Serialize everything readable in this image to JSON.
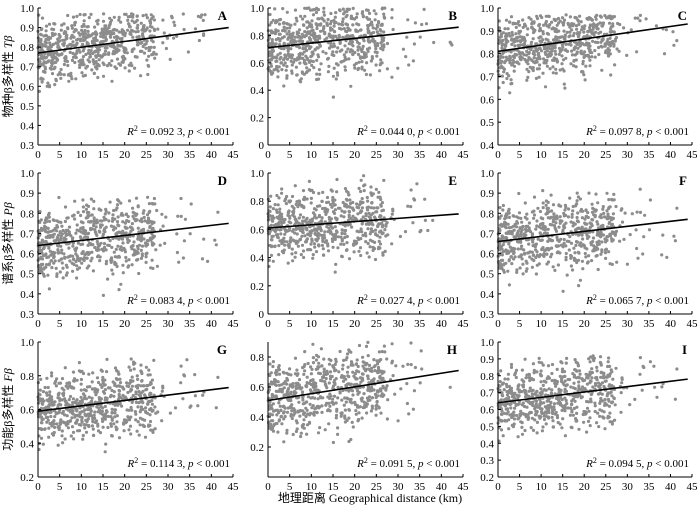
{
  "figure": {
    "xlabel": "地理距离 Geographical distance (km)",
    "row_ylabels": [
      "物种β多样性 Tβ",
      "谱系β多样性 Pβ",
      "功能β多样性 Fβ"
    ]
  },
  "chart_data": [
    {
      "type": "scatter",
      "panel": "A",
      "xlim": [
        0,
        45
      ],
      "ylim": [
        0.3,
        1.0
      ],
      "xticks": [
        0,
        5,
        10,
        15,
        20,
        25,
        30,
        35,
        40,
        45
      ],
      "yticks": [
        0.3,
        0.4,
        0.5,
        0.6,
        0.7,
        0.8,
        0.9,
        1.0
      ],
      "yticklabels": [
        "0.3",
        "0.4",
        "0.5",
        "0.6",
        "0.7",
        "0.8",
        "0.9",
        "1.0"
      ],
      "fit": {
        "x": [
          0,
          44
        ],
        "y": [
          0.77,
          0.9
        ]
      },
      "stat": {
        "r2": "0.092 3",
        "p": "< 0.001"
      },
      "cloud": {
        "center": 0.82,
        "spread": 0.08,
        "min": 0.45,
        "max": 0.97
      },
      "grid": false
    },
    {
      "type": "scatter",
      "panel": "B",
      "xlim": [
        0,
        45
      ],
      "ylim": [
        0,
        1.0
      ],
      "xticks": [
        0,
        5,
        10,
        15,
        20,
        25,
        30,
        35,
        40,
        45
      ],
      "yticks": [
        0,
        0.2,
        0.4,
        0.6,
        0.8,
        1.0
      ],
      "yticklabels": [
        "0",
        "0.2",
        "0.4",
        "0.6",
        "0.8",
        "1.0"
      ],
      "fit": {
        "x": [
          0,
          44
        ],
        "y": [
          0.71,
          0.86
        ]
      },
      "stat": {
        "r2": "0.044 0",
        "p": "< 0.001"
      },
      "cloud": {
        "center": 0.78,
        "spread": 0.13,
        "min": 0.3,
        "max": 1.0
      },
      "grid": false
    },
    {
      "type": "scatter",
      "panel": "C",
      "xlim": [
        0,
        45
      ],
      "ylim": [
        0.4,
        1.0
      ],
      "xticks": [
        0,
        5,
        10,
        15,
        20,
        25,
        30,
        35,
        40,
        45
      ],
      "yticks": [
        0.4,
        0.5,
        0.6,
        0.7,
        0.8,
        0.9,
        1.0
      ],
      "yticklabels": [
        "0.4",
        "0.5",
        "0.6",
        "0.7",
        "0.8",
        "0.9",
        "1.0"
      ],
      "fit": {
        "x": [
          0,
          44
        ],
        "y": [
          0.81,
          0.93
        ]
      },
      "stat": {
        "r2": "0.097 8",
        "p": "< 0.001"
      },
      "cloud": {
        "center": 0.86,
        "spread": 0.07,
        "min": 0.45,
        "max": 0.97
      },
      "grid": false
    },
    {
      "type": "scatter",
      "panel": "D",
      "xlim": [
        0,
        45
      ],
      "ylim": [
        0.3,
        1.0
      ],
      "xticks": [
        0,
        5,
        10,
        15,
        20,
        25,
        30,
        35,
        40,
        45
      ],
      "yticks": [
        0.3,
        0.4,
        0.5,
        0.6,
        0.7,
        0.8,
        0.9,
        1.0
      ],
      "yticklabels": [
        "0.3",
        "0.4",
        "0.5",
        "0.6",
        "0.7",
        "0.8",
        "0.9",
        "1.0"
      ],
      "fit": {
        "x": [
          0,
          44
        ],
        "y": [
          0.64,
          0.75
        ]
      },
      "stat": {
        "r2": "0.083 4",
        "p": "< 0.001"
      },
      "cloud": {
        "center": 0.68,
        "spread": 0.09,
        "min": 0.34,
        "max": 0.88
      },
      "grid": false
    },
    {
      "type": "scatter",
      "panel": "E",
      "xlim": [
        0,
        45
      ],
      "ylim": [
        0,
        1.0
      ],
      "xticks": [
        0,
        5,
        10,
        15,
        20,
        25,
        30,
        35,
        40,
        45
      ],
      "yticks": [
        0,
        0.2,
        0.4,
        0.6,
        0.8,
        1.0
      ],
      "yticklabels": [
        "0",
        "0.2",
        "0.4",
        "0.6",
        "0.8",
        "1.0"
      ],
      "fit": {
        "x": [
          0,
          44
        ],
        "y": [
          0.61,
          0.71
        ]
      },
      "stat": {
        "r2": "0.027 4",
        "p": "< 0.001"
      },
      "cloud": {
        "center": 0.65,
        "spread": 0.12,
        "min": 0.2,
        "max": 1.0
      },
      "grid": false
    },
    {
      "type": "scatter",
      "panel": "F",
      "xlim": [
        0,
        45
      ],
      "ylim": [
        0.3,
        1.0
      ],
      "xticks": [
        0,
        5,
        10,
        15,
        20,
        25,
        30,
        35,
        40,
        45
      ],
      "yticks": [
        0.3,
        0.4,
        0.5,
        0.6,
        0.7,
        0.8,
        0.9,
        1.0
      ],
      "yticklabels": [
        "0.3",
        "0.4",
        "0.5",
        "0.6",
        "0.7",
        "0.8",
        "0.9",
        "1.0"
      ],
      "fit": {
        "x": [
          0,
          44
        ],
        "y": [
          0.66,
          0.77
        ]
      },
      "stat": {
        "r2": "0.065 7",
        "p": "< 0.001"
      },
      "cloud": {
        "center": 0.7,
        "spread": 0.09,
        "min": 0.38,
        "max": 0.93
      },
      "grid": false
    },
    {
      "type": "scatter",
      "panel": "G",
      "xlim": [
        0,
        45
      ],
      "ylim": [
        0.2,
        1.0
      ],
      "xticks": [
        0,
        5,
        10,
        15,
        20,
        25,
        30,
        35,
        40,
        45
      ],
      "yticks": [
        0.2,
        0.4,
        0.6,
        0.8,
        1.0
      ],
      "yticklabels": [
        "0.2",
        "0.4",
        "0.6",
        "0.8",
        "1.0"
      ],
      "fit": {
        "x": [
          0,
          44
        ],
        "y": [
          0.59,
          0.73
        ]
      },
      "stat": {
        "r2": "0.114 3",
        "p": "< 0.001"
      },
      "cloud": {
        "center": 0.64,
        "spread": 0.1,
        "min": 0.25,
        "max": 0.9
      },
      "grid": false
    },
    {
      "type": "scatter",
      "panel": "H",
      "xlim": [
        0,
        45
      ],
      "ylim": [
        0,
        0.9
      ],
      "xticks": [
        0,
        5,
        10,
        15,
        20,
        25,
        30,
        35,
        40,
        45
      ],
      "yticks": [
        0.2,
        0.4,
        0.6,
        0.8
      ],
      "yticklabels": [
        "0.2",
        "0.4",
        "0.6",
        "0.8"
      ],
      "fit": {
        "x": [
          0,
          44
        ],
        "y": [
          0.51,
          0.71
        ]
      },
      "stat": {
        "r2": "0.091 5",
        "p": "< 0.001"
      },
      "cloud": {
        "center": 0.58,
        "spread": 0.13,
        "min": 0.22,
        "max": 0.9
      },
      "grid": false
    },
    {
      "type": "scatter",
      "panel": "I",
      "xlim": [
        0,
        45
      ],
      "ylim": [
        0.2,
        1.0
      ],
      "xticks": [
        0,
        5,
        10,
        15,
        20,
        25,
        30,
        35,
        40,
        45
      ],
      "yticks": [
        0.2,
        0.3,
        0.4,
        0.5,
        0.6,
        0.7,
        0.8,
        0.9,
        1.0
      ],
      "yticklabels": [
        "0.2",
        "0.3",
        "0.4",
        "0.5",
        "0.6",
        "0.7",
        "0.8",
        "0.9",
        "1.0"
      ],
      "fit": {
        "x": [
          0,
          44
        ],
        "y": [
          0.64,
          0.78
        ]
      },
      "stat": {
        "r2": "0.094 5",
        "p": "< 0.001"
      },
      "cloud": {
        "center": 0.69,
        "spread": 0.1,
        "min": 0.28,
        "max": 0.92
      },
      "grid": false
    }
  ],
  "colors": {
    "points": "#8c8c8c",
    "fit": "#000000",
    "axis": "#000000"
  }
}
